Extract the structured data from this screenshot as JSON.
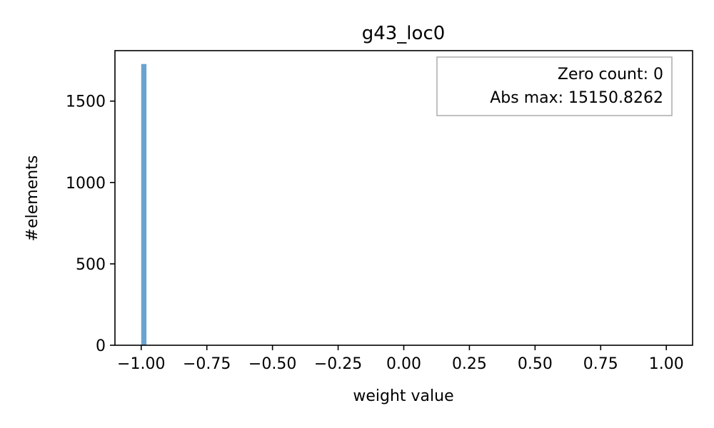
{
  "chart_data": {
    "type": "bar",
    "title": "g43_loc0",
    "xlabel": "weight value",
    "ylabel": "#elements",
    "xlim": [
      -1.1,
      1.1
    ],
    "ylim": [
      0,
      1810
    ],
    "x_ticks": [
      -1.0,
      -0.75,
      -0.5,
      -0.25,
      0.0,
      0.25,
      0.5,
      0.75,
      1.0
    ],
    "x_tick_labels": [
      "−1.00",
      "−0.75",
      "−0.50",
      "−0.25",
      "0.00",
      "0.25",
      "0.50",
      "0.75",
      "1.00"
    ],
    "y_ticks": [
      0,
      500,
      1000,
      1500
    ],
    "y_tick_labels": [
      "0",
      "500",
      "1000",
      "1500"
    ],
    "bins": [
      {
        "x0": -1.0,
        "x1": -0.98,
        "count": 1728
      }
    ],
    "bar_color": "#6aa3d1",
    "grid": false,
    "annotation": {
      "lines": [
        "Zero count: 0",
        "Abs max: 15150.8262"
      ],
      "placement": "top-right"
    }
  }
}
